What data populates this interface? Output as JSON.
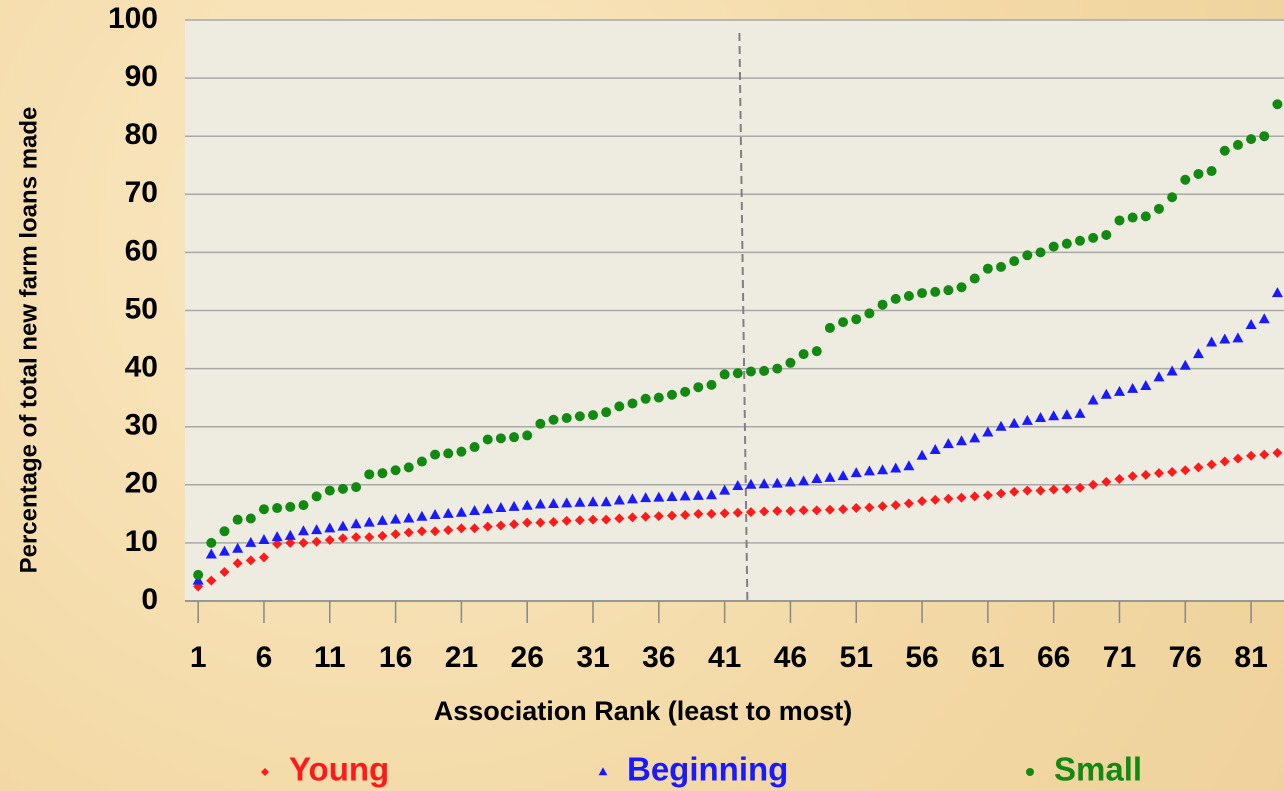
{
  "chart_data": {
    "type": "scatter",
    "x_label": "Association Rank (least to most)",
    "y_label": "Percentage of total new farm loans made",
    "x": [
      1,
      2,
      3,
      4,
      5,
      6,
      7,
      8,
      9,
      10,
      11,
      12,
      13,
      14,
      15,
      16,
      17,
      18,
      19,
      20,
      21,
      22,
      23,
      24,
      25,
      26,
      27,
      28,
      29,
      30,
      31,
      32,
      33,
      34,
      35,
      36,
      37,
      38,
      39,
      40,
      41,
      42,
      43,
      44,
      45,
      46,
      47,
      48,
      49,
      50,
      51,
      52,
      53,
      54,
      55,
      56,
      57,
      58,
      59,
      60,
      61,
      62,
      63,
      64,
      65,
      66,
      67,
      68,
      69,
      70,
      71,
      72,
      73,
      74,
      75,
      76,
      77,
      78,
      79,
      80,
      81,
      82,
      83
    ],
    "series": [
      {
        "name": "Young",
        "color": "#ff1a1a",
        "marker": "diamond",
        "values": [
          2.5,
          3.5,
          5,
          6.5,
          7,
          7.5,
          9.8,
          10,
          10,
          10.2,
          10.5,
          10.8,
          11,
          11,
          11.2,
          11.5,
          11.8,
          12,
          12,
          12.2,
          12.5,
          12.5,
          12.8,
          13,
          13.2,
          13.5,
          13.5,
          13.6,
          13.8,
          13.9,
          14,
          14,
          14.2,
          14.4,
          14.5,
          14.6,
          14.7,
          14.8,
          15,
          15,
          15.1,
          15.2,
          15.3,
          15.4,
          15.5,
          15.5,
          15.6,
          15.6,
          15.7,
          15.8,
          16,
          16.1,
          16.3,
          16.5,
          16.8,
          17.2,
          17.4,
          17.6,
          17.8,
          18,
          18.2,
          18.5,
          18.8,
          19,
          19,
          19.2,
          19.3,
          19.5,
          20,
          20.5,
          21,
          21.5,
          21.7,
          22,
          22.2,
          22.5,
          23,
          23.5,
          24,
          24.5,
          25,
          25.2,
          25.5
        ]
      },
      {
        "name": "Beginning",
        "color": "#1a1aff",
        "marker": "triangle",
        "values": [
          3.5,
          8,
          8.5,
          9,
          10,
          10.5,
          11,
          11.2,
          12,
          12.2,
          12.5,
          12.8,
          13.2,
          13.5,
          13.8,
          14,
          14.2,
          14.5,
          14.8,
          15,
          15.2,
          15.5,
          15.8,
          16,
          16.2,
          16.4,
          16.6,
          16.7,
          16.8,
          16.9,
          17,
          17,
          17.3,
          17.5,
          17.7,
          17.8,
          17.9,
          18,
          18.1,
          18.2,
          19,
          19.8,
          20,
          20.1,
          20.2,
          20.4,
          20.6,
          21,
          21.2,
          21.5,
          22,
          22.3,
          22.5,
          22.8,
          23.2,
          25,
          26,
          27,
          27.5,
          28,
          29,
          30,
          30.5,
          31,
          31.5,
          31.8,
          32,
          32.2,
          34.5,
          35.5,
          36,
          36.5,
          37,
          38.5,
          39.5,
          40.5,
          42.5,
          44.5,
          45,
          45.2,
          47.5,
          48.5,
          53
        ]
      },
      {
        "name": "Small",
        "color": "#128a12",
        "marker": "circle",
        "values": [
          4.5,
          10,
          12,
          14,
          14.2,
          15.8,
          16,
          16.2,
          16.5,
          18,
          19,
          19.3,
          19.6,
          21.8,
          22,
          22.5,
          23,
          24,
          25.2,
          25.4,
          25.7,
          26.5,
          27.8,
          28,
          28.2,
          28.5,
          30.5,
          31.2,
          31.5,
          31.8,
          32,
          32.5,
          33.5,
          34,
          34.8,
          35,
          35.5,
          36,
          36.8,
          37.2,
          39,
          39.2,
          39.5,
          39.6,
          40,
          41,
          42.5,
          43,
          47,
          48,
          48.5,
          49.5,
          51,
          52,
          52.5,
          53,
          53.2,
          53.5,
          54,
          55.5,
          57.2,
          57.5,
          58.5,
          59.5,
          60,
          61,
          61.5,
          62,
          62.5,
          63,
          65.5,
          66,
          66.2,
          67.5,
          69.5,
          72.5,
          73.5,
          74,
          77.5,
          78.5,
          79.5,
          80,
          85.5
        ]
      }
    ],
    "xlim": [
      0,
      83.5
    ],
    "xticks": [
      1,
      6,
      11,
      16,
      21,
      26,
      31,
      36,
      41,
      46,
      51,
      56,
      61,
      66,
      71,
      76,
      81
    ],
    "ylim": [
      0,
      100
    ],
    "yticks": [
      0,
      10,
      20,
      30,
      40,
      50,
      60,
      70,
      80,
      90,
      100
    ],
    "grid": true,
    "reference_line_x": 42.5,
    "legend": "bottom"
  }
}
